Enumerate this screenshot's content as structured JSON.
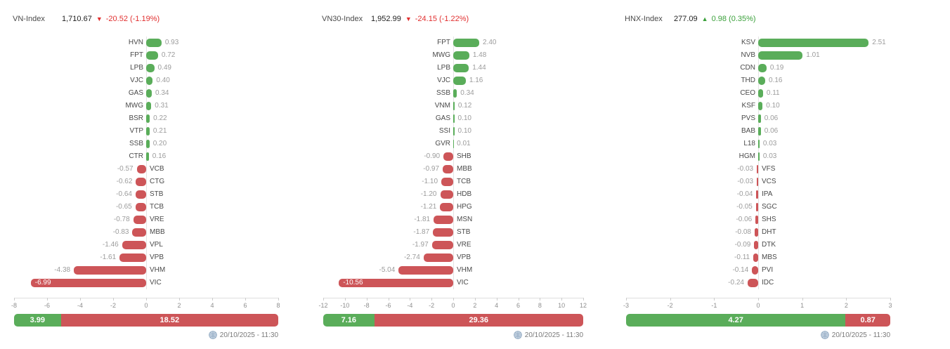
{
  "colors": {
    "positive_bar": "#5aad5a",
    "negative_bar": "#cd5558",
    "up_text": "#3aa03a",
    "down_text": "#e12f2f",
    "axis_line": "#dddddd",
    "value_label": "#9c9c9c"
  },
  "chart_data": [
    {
      "type": "bar",
      "orientation": "horizontal",
      "title": "VN-Index",
      "index_value": "1,710.67",
      "direction": "down",
      "direction_icon": "▼",
      "change": "-20.52 (-1.19%)",
      "categories": [
        "HVN",
        "FPT",
        "LPB",
        "VJC",
        "GAS",
        "MWG",
        "BSR",
        "VTP",
        "SSB",
        "CTR",
        "VCB",
        "CTG",
        "STB",
        "TCB",
        "VRE",
        "MBB",
        "VPL",
        "VPB",
        "VHM",
        "VIC"
      ],
      "values": [
        0.93,
        0.72,
        0.49,
        0.4,
        0.34,
        0.31,
        0.22,
        0.21,
        0.2,
        0.16,
        -0.57,
        -0.62,
        -0.64,
        -0.65,
        -0.78,
        -0.83,
        -1.46,
        -1.61,
        -4.38,
        -6.99
      ],
      "xlim": [
        -8,
        8
      ],
      "tick_step": 2,
      "grid": false,
      "summary": {
        "advancing": 3.99,
        "declining": 18.52
      },
      "timestamp": "20/10/2025 - 11:30"
    },
    {
      "type": "bar",
      "orientation": "horizontal",
      "title": "VN30-Index",
      "index_value": "1,952.99",
      "direction": "down",
      "direction_icon": "▼",
      "change": "-24.15 (-1.22%)",
      "categories": [
        "FPT",
        "MWG",
        "LPB",
        "VJC",
        "SSB",
        "VNM",
        "GAS",
        "SSI",
        "GVR",
        "SHB",
        "MBB",
        "TCB",
        "HDB",
        "HPG",
        "MSN",
        "STB",
        "VRE",
        "VPB",
        "VHM",
        "VIC"
      ],
      "values": [
        2.4,
        1.48,
        1.44,
        1.16,
        0.34,
        0.12,
        0.1,
        0.1,
        0.01,
        -0.9,
        -0.97,
        -1.1,
        -1.2,
        -1.21,
        -1.81,
        -1.87,
        -1.97,
        -2.74,
        -5.04,
        -10.56
      ],
      "xlim": [
        -12,
        12
      ],
      "tick_step": 2,
      "grid": false,
      "summary": {
        "advancing": 7.16,
        "declining": 29.36
      },
      "timestamp": "20/10/2025 - 11:30"
    },
    {
      "type": "bar",
      "orientation": "horizontal",
      "title": "HNX-Index",
      "index_value": "277.09",
      "direction": "up",
      "direction_icon": "▲",
      "change": "0.98 (0.35%)",
      "categories": [
        "KSV",
        "NVB",
        "CDN",
        "THD",
        "CEO",
        "KSF",
        "PVS",
        "BAB",
        "L18",
        "HGM",
        "VFS",
        "VCS",
        "IPA",
        "SGC",
        "SHS",
        "DHT",
        "DTK",
        "MBS",
        "PVI",
        "IDC"
      ],
      "values": [
        2.51,
        1.01,
        0.19,
        0.16,
        0.11,
        0.1,
        0.06,
        0.06,
        0.03,
        0.03,
        -0.03,
        -0.03,
        -0.04,
        -0.05,
        -0.06,
        -0.08,
        -0.09,
        -0.11,
        -0.14,
        -0.24
      ],
      "xlim": [
        -3,
        3
      ],
      "tick_step": 1,
      "grid": false,
      "summary": {
        "advancing": 4.27,
        "declining": 0.87
      },
      "timestamp": "20/10/2025 - 11:30"
    }
  ]
}
